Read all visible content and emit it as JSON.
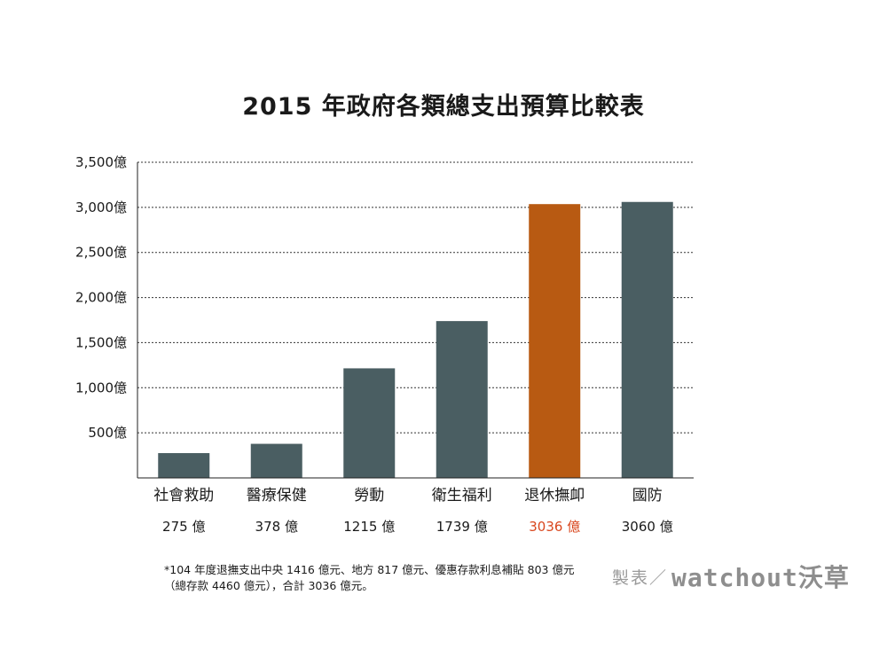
{
  "chart_data": {
    "type": "bar",
    "title": "2015 年政府各類總支出預算比較表",
    "categories": [
      "社會救助",
      "醫療保健",
      "勞動",
      "衛生福利",
      "退休撫卹",
      "國防"
    ],
    "values": [
      275,
      378,
      1215,
      1739,
      3036,
      3060
    ],
    "value_labels": [
      "275 億",
      "378 億",
      "1215 億",
      "1739 億",
      "3036 億",
      "3060 億"
    ],
    "yticks": [
      500,
      1000,
      1500,
      2000,
      2500,
      3000,
      3500
    ],
    "ytick_labels": [
      "500億",
      "1,000億",
      "1,500億",
      "2,000億",
      "2,500億",
      "3,000億",
      "3,500億"
    ],
    "ylim": [
      0,
      3500
    ],
    "grid": true,
    "highlight_index": 4,
    "colors": {
      "bar": "#4a5e62",
      "highlight_bar": "#b85a12",
      "highlight_label": "#d9471e",
      "grid": "#333333"
    }
  },
  "footnote": "*104 年度退撫支出中央 1416 億元、地方 817 億元、優惠存款利息補貼 803 億元（總存款 4460 億元），合計 3036 億元。",
  "credit": {
    "prefix": "製表／",
    "brand": "watchout沃草"
  }
}
